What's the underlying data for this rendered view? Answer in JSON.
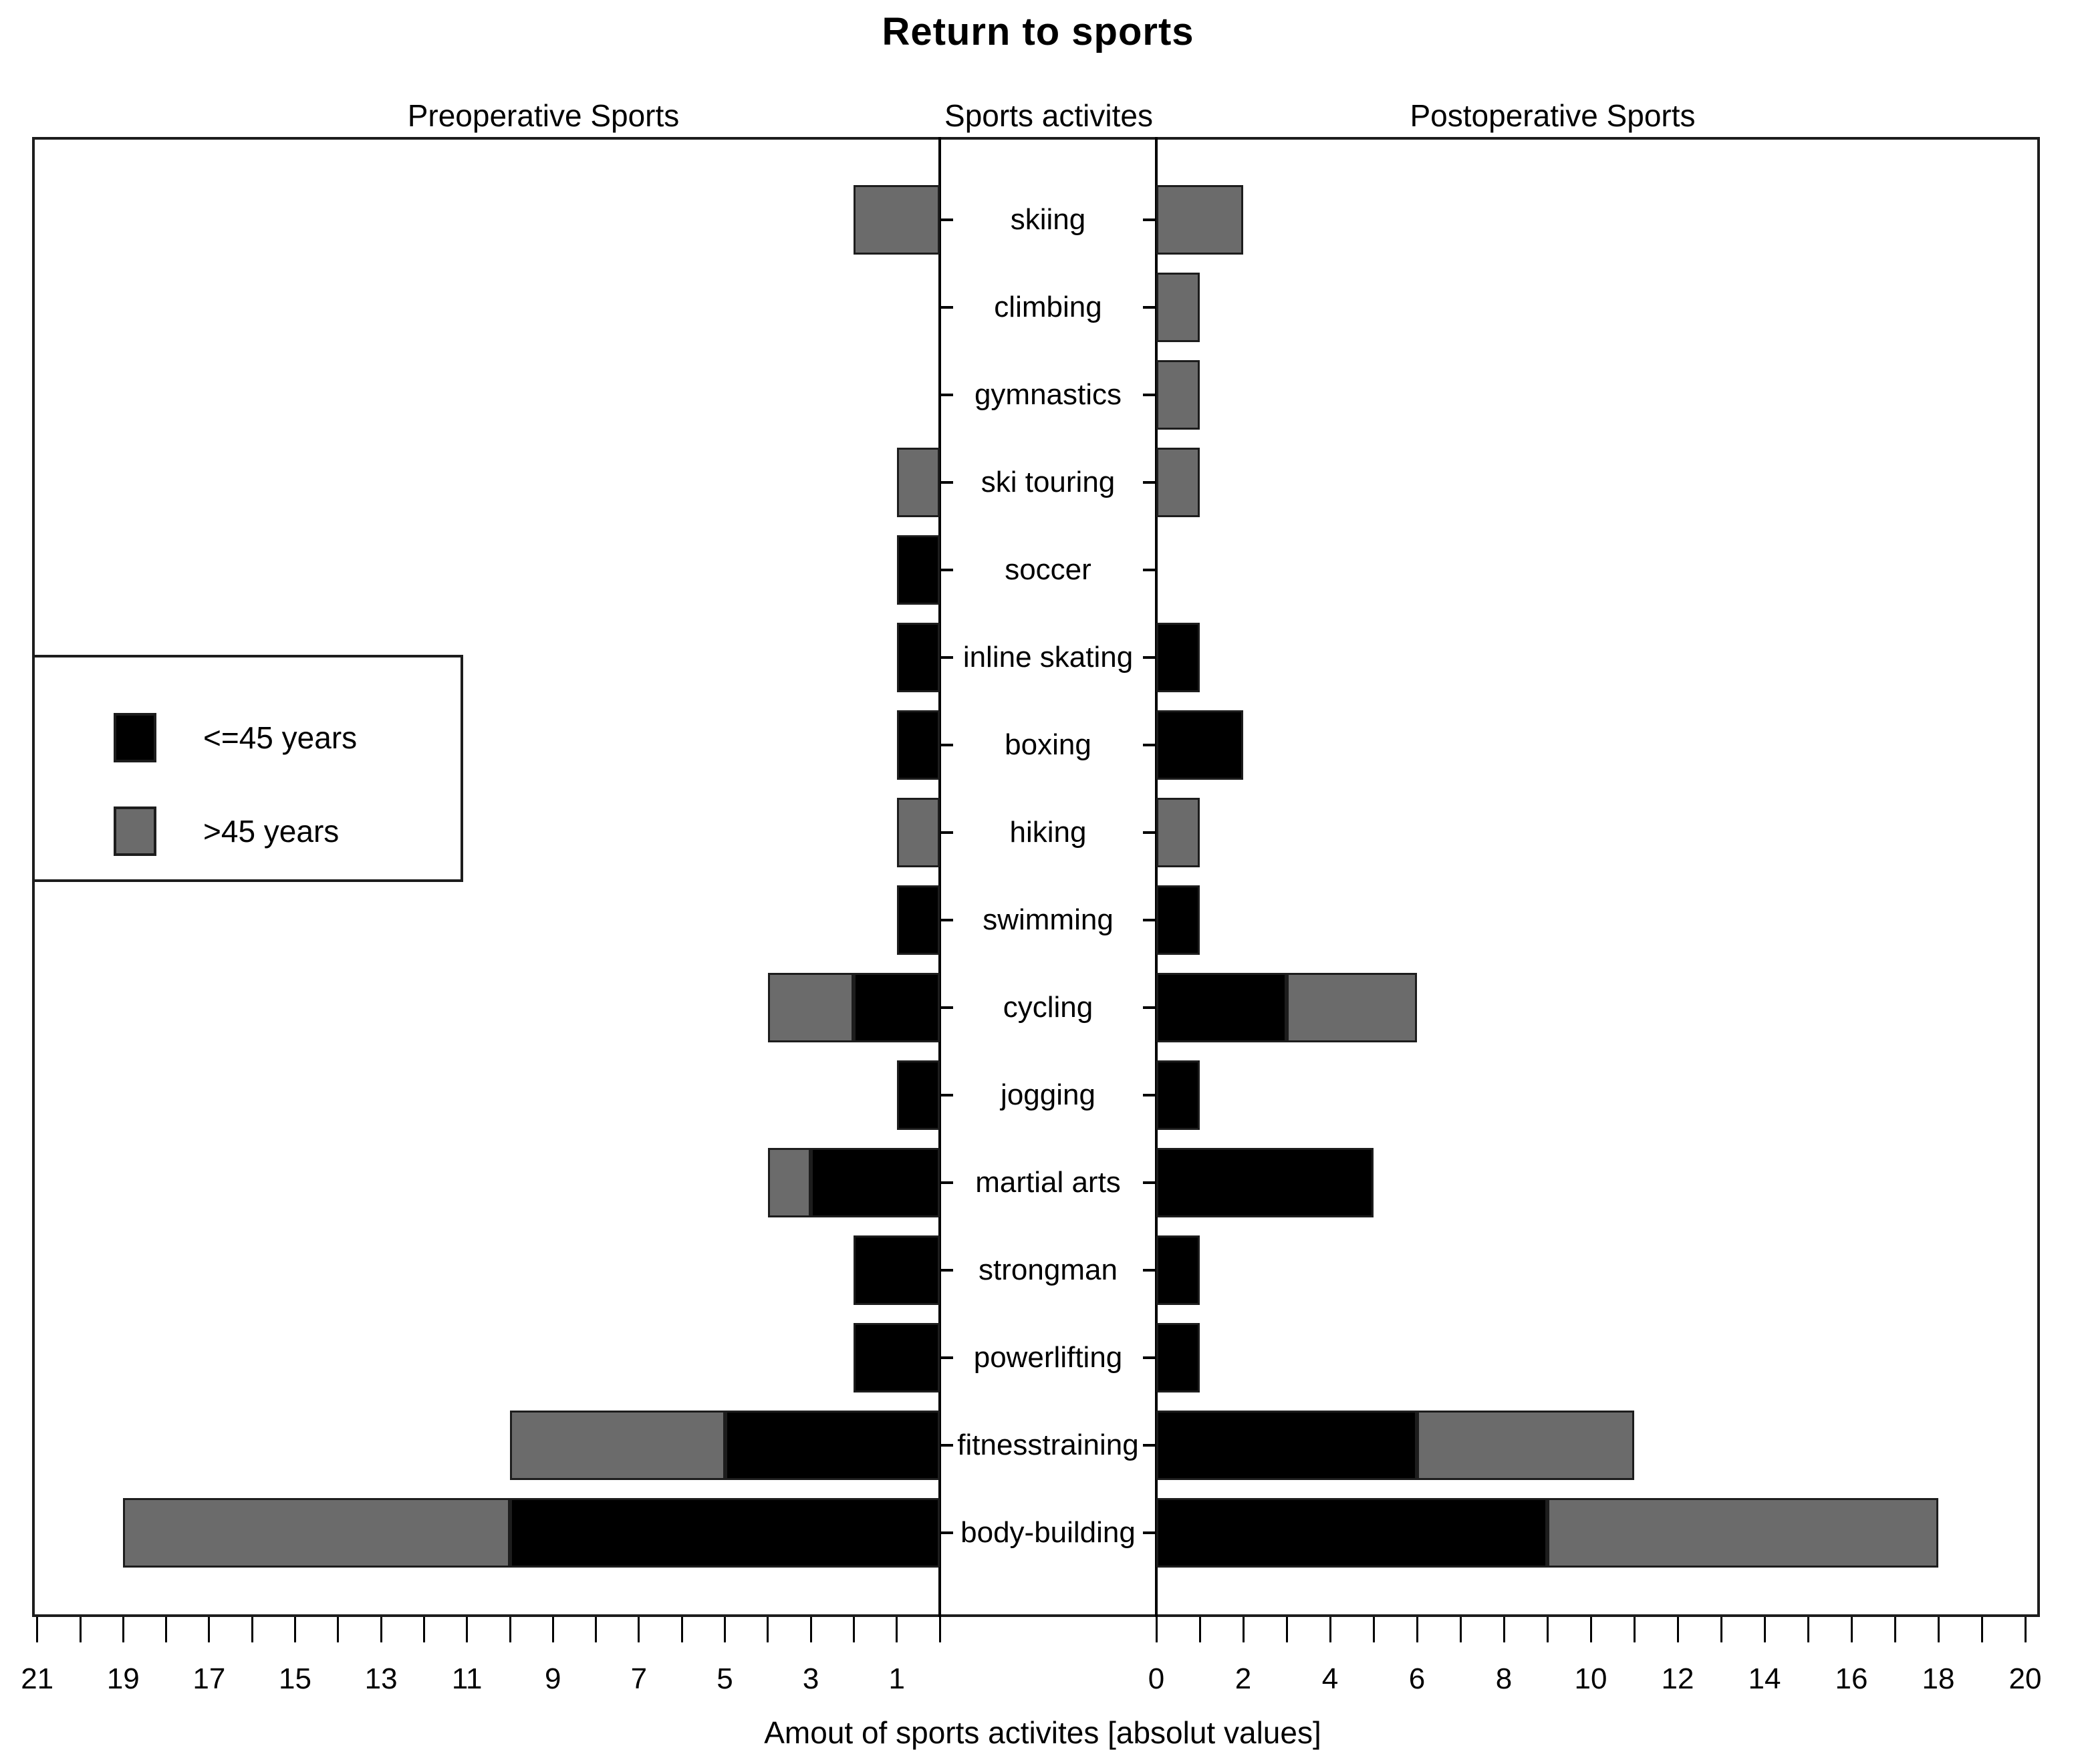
{
  "title": "Return to sports",
  "headers": {
    "left": "Preoperative Sports",
    "center": "Sports activites",
    "right": "Postoperative Sports"
  },
  "xlabel": "Amout of sports activites [absolut values]",
  "legend": {
    "items": [
      {
        "label": "<=45 years",
        "color": "#000000"
      },
      {
        "label": ">45 years",
        "color": "#6b6b6b"
      }
    ]
  },
  "colors": {
    "le45": "#000000",
    "gt45": "#6b6b6b",
    "bar_border": "#1d1d1d",
    "axis": "#000000"
  },
  "chart_data": {
    "type": "bar",
    "orientation": "horizontal-diverging",
    "title": "Return to sports",
    "xlabel": "Amout of sports activites [absolut values]",
    "center_axis_label": "Sports activites",
    "left_side_label": "Preoperative Sports",
    "right_side_label": "Postoperative Sports",
    "legend_position": "middle-left",
    "grid": false,
    "categories": [
      "skiing",
      "climbing",
      "gymnastics",
      "ski touring",
      "soccer",
      "inline skating",
      "boxing",
      "hiking",
      "swimming",
      "cycling",
      "jogging",
      "martial arts",
      "strongman",
      "powerlifting",
      "fitnesstraining",
      "body-building"
    ],
    "series": [
      {
        "name": "Preoperative <=45 years",
        "side": "left",
        "color": "#000000",
        "values": [
          0,
          0,
          0,
          0,
          1,
          1,
          1,
          0,
          1,
          2,
          1,
          3,
          2,
          2,
          5,
          10
        ]
      },
      {
        "name": "Preoperative >45 years",
        "side": "left",
        "color": "#6b6b6b",
        "values": [
          2,
          0,
          0,
          1,
          0,
          0,
          0,
          1,
          0,
          2,
          0,
          1,
          0,
          0,
          5,
          9
        ]
      },
      {
        "name": "Postoperative <=45 years",
        "side": "right",
        "color": "#000000",
        "values": [
          0,
          0,
          0,
          0,
          0,
          1,
          2,
          0,
          1,
          3,
          1,
          5,
          1,
          1,
          6,
          9
        ]
      },
      {
        "name": "Postoperative >45 years",
        "side": "right",
        "color": "#6b6b6b",
        "values": [
          2,
          1,
          1,
          1,
          0,
          0,
          0,
          1,
          0,
          3,
          0,
          0,
          0,
          0,
          5,
          9
        ]
      }
    ],
    "left_axis": {
      "max": 21,
      "tick_step": 1,
      "labels": [
        "21",
        "19",
        "17",
        "15",
        "13",
        "11",
        "9",
        "7",
        "5",
        "3",
        "1"
      ],
      "label_values": [
        21,
        19,
        17,
        15,
        13,
        11,
        9,
        7,
        5,
        3,
        1
      ]
    },
    "right_axis": {
      "max": 20,
      "tick_step": 1,
      "labels": [
        "0",
        "2",
        "4",
        "6",
        "8",
        "10",
        "12",
        "14",
        "16",
        "18",
        "20"
      ],
      "label_values": [
        0,
        2,
        4,
        6,
        8,
        10,
        12,
        14,
        16,
        18,
        20
      ]
    }
  }
}
